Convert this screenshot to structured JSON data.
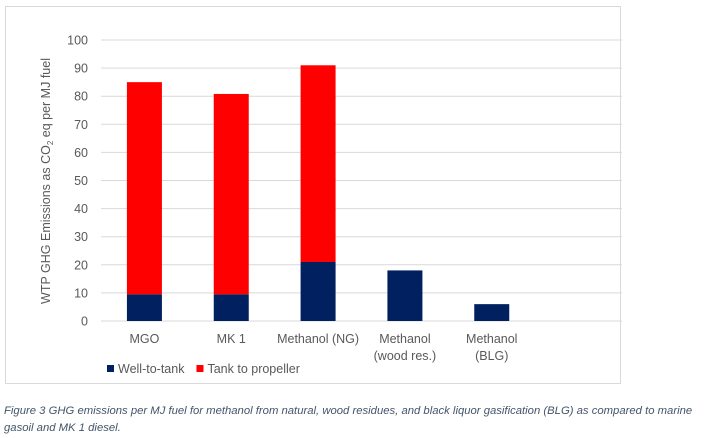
{
  "chart_data": {
    "type": "bar",
    "stacked": true,
    "title": "",
    "xlabel": "",
    "ylabel": "WTP GHG Emissions as CO2 eq per MJ fuel",
    "ylabel_parts": {
      "pre": "WTP GHG Emissions as CO",
      "sub": "2",
      "post": " eq per MJ fuel"
    },
    "ylim": [
      0,
      100
    ],
    "yticks": [
      0,
      10,
      20,
      30,
      40,
      50,
      60,
      70,
      80,
      90,
      100
    ],
    "grid": true,
    "legend_position": "bottom-left",
    "categories": [
      [
        "MGO"
      ],
      [
        "MK 1"
      ],
      [
        "Methanol (NG)"
      ],
      [
        "Methanol",
        "(wood res.)"
      ],
      [
        "Methanol",
        "(BLG)"
      ]
    ],
    "series": [
      {
        "name": "Well-to-tank",
        "color": "#002060",
        "values": [
          9.5,
          9.5,
          21,
          18,
          6
        ]
      },
      {
        "name": "Tank to propeller",
        "color": "#ff0000",
        "values": [
          75.5,
          71.3,
          70,
          0,
          0
        ]
      }
    ]
  },
  "caption": "Figure 3 GHG emissions per MJ fuel for methanol from natural, wood residues, and black liquor gasification (BLG) as compared to marine gasoil and MK 1 diesel."
}
